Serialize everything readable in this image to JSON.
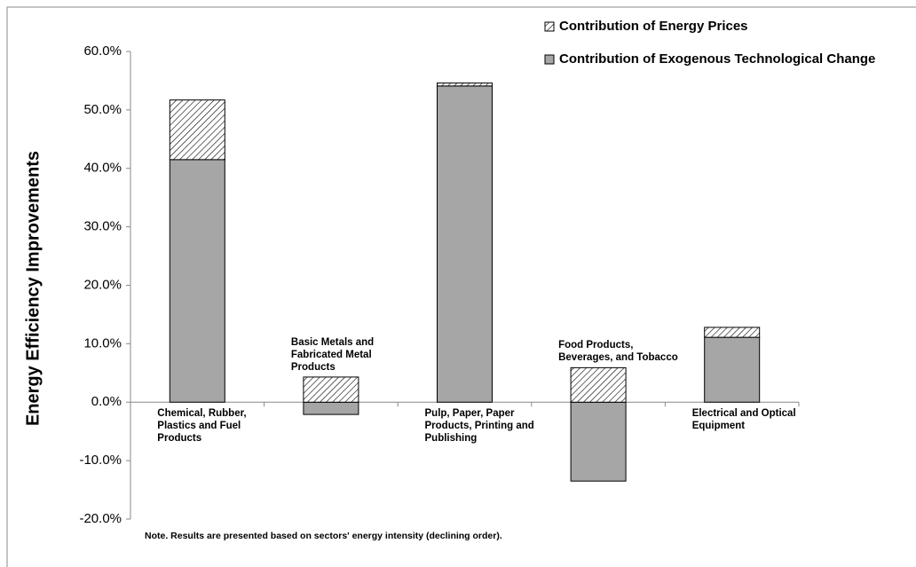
{
  "chart_data": {
    "type": "stacked_bar",
    "y_axis_label": "Energy Efficiency Improvements",
    "note": "Note.  Results are presented based on sectors' energy intensity (declining order).",
    "categories": [
      "Chemical, Rubber, Plastics and Fuel Products",
      "Basic Metals and Fabricated Metal Products",
      "Pulp, Paper, Paper Products, Printing and Publishing",
      "Food Products, Beverages, and Tobacco",
      "Electrical and Optical Equipment"
    ],
    "series": [
      {
        "name": "Contribution of Energy Prices",
        "color": "#ffffff",
        "hatch": true,
        "values": [
          10.2,
          4.3,
          0.5,
          5.9,
          1.7
        ]
      },
      {
        "name": "Contribution of Exogenous Technological Change",
        "color": "#a6a6a6",
        "hatch": false,
        "values": [
          41.5,
          -2.1,
          54.1,
          -13.5,
          11.1
        ]
      }
    ],
    "ylim": [
      -20,
      60
    ],
    "yticks": [
      {
        "value": -20,
        "label": "-20.0%"
      },
      {
        "value": -10,
        "label": "-10.0%"
      },
      {
        "value": 0,
        "label": "0.0%"
      },
      {
        "value": 10,
        "label": "10.0%"
      },
      {
        "value": 20,
        "label": "20.0%"
      },
      {
        "value": 30,
        "label": "30.0%"
      },
      {
        "value": 40,
        "label": "40.0%"
      },
      {
        "value": 50,
        "label": "50.0%"
      },
      {
        "value": 60,
        "label": "60.0%"
      }
    ]
  }
}
